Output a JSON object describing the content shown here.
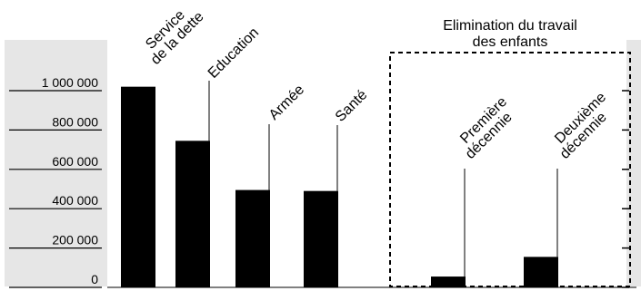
{
  "chart_data": {
    "type": "bar",
    "title": "",
    "xlabel": "",
    "ylabel": "",
    "ylim": [
      0,
      1000000
    ],
    "yticks": [
      {
        "value": 0,
        "label": "0"
      },
      {
        "value": 200000,
        "label": "200 000"
      },
      {
        "value": 400000,
        "label": "400 000"
      },
      {
        "value": 600000,
        "label": "600 000"
      },
      {
        "value": 800000,
        "label": "800 000"
      },
      {
        "value": 1000000,
        "label": "1 000 000"
      }
    ],
    "grid": false,
    "colors": {
      "bar": "#000000",
      "panel": "#e6e6e6"
    },
    "categories": [
      {
        "lines": [
          "Service",
          "de la dette"
        ],
        "value": 1020000
      },
      {
        "lines": [
          "Education"
        ],
        "value": 745000
      },
      {
        "lines": [
          "Armée"
        ],
        "value": 495000
      },
      {
        "lines": [
          "Santé"
        ],
        "value": 490000
      },
      {
        "lines": [
          "Première",
          "décennie"
        ],
        "value": 55000
      },
      {
        "lines": [
          "Deuxième",
          "décennie"
        ],
        "value": 155000
      }
    ],
    "annotation_box": {
      "title_lines": [
        "Elimination du travail",
        "des enfants"
      ]
    }
  }
}
